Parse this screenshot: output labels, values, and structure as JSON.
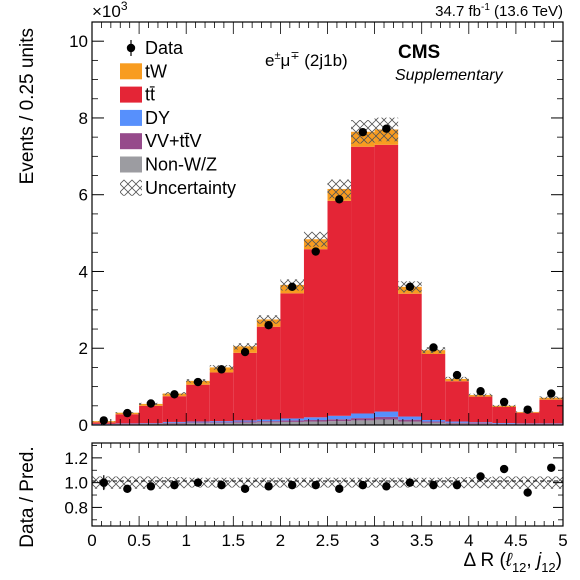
{
  "chart_data": [
    {
      "type": "bar",
      "stacked": true,
      "bin_edges": [
        0,
        0.25,
        0.5,
        0.75,
        1.0,
        1.25,
        1.5,
        1.75,
        2.0,
        2.25,
        2.5,
        2.75,
        3.0,
        3.25,
        3.5,
        3.75,
        4.0,
        4.25,
        4.5,
        4.75,
        5.0
      ],
      "xlim": [
        0,
        5
      ],
      "ylim": [
        0,
        10.5
      ],
      "y_multiplier_label": "×10",
      "y_multiplier_exp": "3",
      "yticks": [
        0,
        2,
        4,
        6,
        8,
        10
      ],
      "xticks": [
        0,
        0.5,
        1,
        1.5,
        2,
        2.5,
        3,
        3.5,
        4,
        4.5,
        5
      ],
      "ylabel": "Events / 0.25 units",
      "xlabel": {
        "main": "Δ R (",
        "l": "ℓ",
        "lsub": "12",
        "sep": ", ",
        "j": "j",
        "jsub": "12",
        "close": ")"
      },
      "lumi": {
        "value": "34.7 fb",
        "sup": "-1",
        "energy": " (13.6 TeV)"
      },
      "channel": {
        "pre": "e",
        "esup": "±",
        "mid": "μ",
        "musup": "∓",
        "post": " (2j1b)"
      },
      "experiment": "CMS",
      "experiment_sub": "Supplementary",
      "legend_position": "top-left",
      "legend": [
        {
          "label": "Data",
          "kind": "marker"
        },
        {
          "label": "tW",
          "kind": "fill",
          "color": "#f89c20"
        },
        {
          "label": "tt̄",
          "kind": "fill",
          "color": "#e42536"
        },
        {
          "label": "DY",
          "kind": "fill",
          "color": "#5790fc"
        },
        {
          "label": "VV+tt̄V",
          "kind": "fill",
          "color": "#964a8b"
        },
        {
          "label": "Non-W/Z",
          "kind": "fill",
          "color": "#9c9ca1"
        },
        {
          "label": "Uncertainty",
          "kind": "hatch"
        }
      ],
      "series": [
        {
          "name": "Non-W/Z",
          "color": "#9c9ca1",
          "values": [
            0.01,
            0.02,
            0.03,
            0.04,
            0.05,
            0.05,
            0.06,
            0.07,
            0.08,
            0.09,
            0.1,
            0.12,
            0.14,
            0.09,
            0.06,
            0.04,
            0.03,
            0.02,
            0.02,
            0.02
          ]
        },
        {
          "name": "VV+tt̄V",
          "color": "#964a8b",
          "values": [
            0.01,
            0.01,
            0.01,
            0.02,
            0.02,
            0.02,
            0.03,
            0.03,
            0.04,
            0.04,
            0.05,
            0.06,
            0.07,
            0.05,
            0.03,
            0.02,
            0.02,
            0.01,
            0.01,
            0.01
          ]
        },
        {
          "name": "DY",
          "color": "#5790fc",
          "values": [
            0.01,
            0.01,
            0.01,
            0.02,
            0.02,
            0.03,
            0.03,
            0.04,
            0.05,
            0.07,
            0.09,
            0.12,
            0.14,
            0.08,
            0.04,
            0.03,
            0.02,
            0.02,
            0.01,
            0.01
          ]
        },
        {
          "name": "tt̄",
          "color": "#e42536",
          "values": [
            0.04,
            0.24,
            0.45,
            0.67,
            0.96,
            1.27,
            1.76,
            2.42,
            3.26,
            4.38,
            5.6,
            6.95,
            6.95,
            3.2,
            1.72,
            1.05,
            0.67,
            0.42,
            0.28,
            0.62
          ]
        },
        {
          "name": "tW",
          "color": "#f89c20",
          "values": [
            0.03,
            0.04,
            0.05,
            0.07,
            0.1,
            0.13,
            0.17,
            0.19,
            0.22,
            0.26,
            0.31,
            0.39,
            0.4,
            0.18,
            0.1,
            0.06,
            0.04,
            0.03,
            0.02,
            0.05
          ]
        }
      ],
      "uncertainty_rel": [
        0.05,
        0.05,
        0.05,
        0.045,
        0.04,
        0.04,
        0.04,
        0.04,
        0.04,
        0.04,
        0.04,
        0.04,
        0.04,
        0.04,
        0.04,
        0.045,
        0.045,
        0.05,
        0.05,
        0.05
      ],
      "data": {
        "x": [
          0.125,
          0.375,
          0.625,
          0.875,
          1.125,
          1.375,
          1.625,
          1.875,
          2.125,
          2.375,
          2.625,
          2.875,
          3.125,
          3.375,
          3.625,
          3.875,
          4.125,
          4.375,
          4.625,
          4.875
        ],
        "y": [
          0.12,
          0.31,
          0.56,
          0.8,
          1.12,
          1.45,
          1.9,
          2.6,
          3.6,
          4.52,
          5.88,
          7.63,
          7.72,
          3.6,
          2.02,
          1.3,
          0.88,
          0.6,
          0.4,
          0.82
        ]
      }
    },
    {
      "type": "scatter",
      "ylabel": "Data / Pred.",
      "xlabel": "",
      "xlim": [
        0,
        5
      ],
      "ylim": [
        0.65,
        1.32
      ],
      "yticks": [
        "0.8",
        "1.0",
        "1.2"
      ],
      "x": [
        0.125,
        0.375,
        0.625,
        0.875,
        1.125,
        1.375,
        1.625,
        1.875,
        2.125,
        2.375,
        2.625,
        2.875,
        3.125,
        3.375,
        3.625,
        3.875,
        4.125,
        4.375,
        4.625,
        4.875
      ],
      "y": [
        1.0,
        0.95,
        0.97,
        0.98,
        1.0,
        0.98,
        0.95,
        0.97,
        0.98,
        0.98,
        0.95,
        0.98,
        0.97,
        1.0,
        0.98,
        0.98,
        1.05,
        1.11,
        0.92,
        1.12
      ],
      "yerr": [
        0.06,
        0.03,
        0.02,
        0.02,
        0.015,
        0.015,
        0.012,
        0.01,
        0.01,
        0.01,
        0.008,
        0.008,
        0.008,
        0.01,
        0.012,
        0.015,
        0.02,
        0.025,
        0.03,
        0.025
      ]
    }
  ]
}
